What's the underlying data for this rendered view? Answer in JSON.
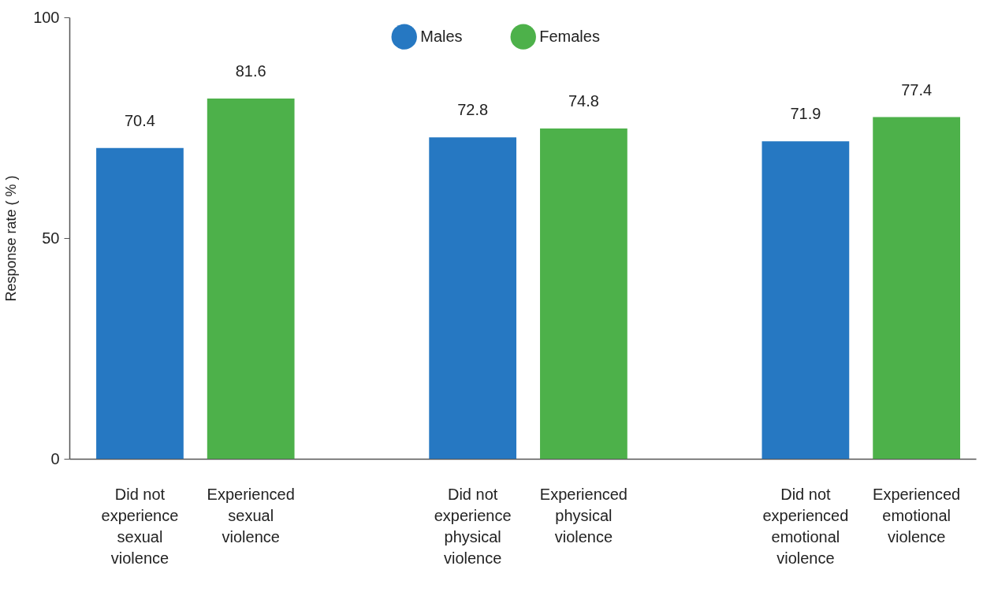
{
  "chart_data": {
    "type": "bar",
    "categories": [
      "Did not experience sexual violence",
      "Experienced sexual violence",
      "Did not experience physical violence",
      "Experienced physical violence",
      "Did not experienced emotional violence",
      "Experienced emotional violence"
    ],
    "series": [
      {
        "name": "Males",
        "color": "#2678c2",
        "values": [
          70.4,
          null,
          72.8,
          null,
          71.9,
          null
        ]
      },
      {
        "name": "Females",
        "color": "#4db14a",
        "values": [
          null,
          81.6,
          null,
          74.8,
          null,
          77.4
        ]
      }
    ],
    "ylabel": "Response rate ( % )",
    "ylim": [
      0,
      100
    ],
    "yticks": [
      0,
      50,
      100
    ],
    "data_labels": true,
    "legend": "top",
    "grid": false
  }
}
